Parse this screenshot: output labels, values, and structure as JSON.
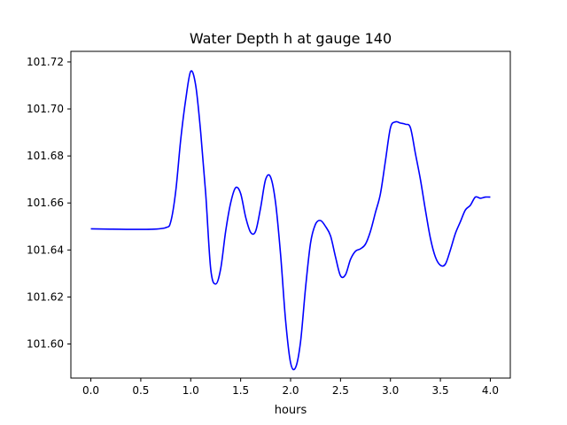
{
  "chart_data": {
    "type": "line",
    "title": "Water Depth h at gauge 140",
    "xlabel": "hours",
    "ylabel": "",
    "xlim": [
      -0.2,
      4.2
    ],
    "ylim": [
      101.5855,
      101.7245
    ],
    "grid": false,
    "x_ticks": [
      0.0,
      0.5,
      1.0,
      1.5,
      2.0,
      2.5,
      3.0,
      3.5,
      4.0
    ],
    "x_tick_labels": [
      "0.0",
      "0.5",
      "1.0",
      "1.5",
      "2.0",
      "2.5",
      "3.0",
      "3.5",
      "4.0"
    ],
    "y_ticks": [
      101.6,
      101.62,
      101.64,
      101.66,
      101.68,
      101.7,
      101.72
    ],
    "y_tick_labels": [
      "101.60",
      "101.62",
      "101.64",
      "101.66",
      "101.68",
      "101.70",
      "101.72"
    ],
    "series": [
      {
        "color": "#0000ff",
        "x": [
          0.0,
          0.3,
          0.6,
          0.75,
          0.8,
          0.85,
          0.9,
          0.95,
          1.0,
          1.05,
          1.1,
          1.15,
          1.2,
          1.25,
          1.3,
          1.35,
          1.4,
          1.45,
          1.5,
          1.55,
          1.6,
          1.65,
          1.7,
          1.75,
          1.8,
          1.85,
          1.9,
          1.95,
          2.0,
          2.05,
          2.1,
          2.15,
          2.2,
          2.25,
          2.3,
          2.35,
          2.4,
          2.45,
          2.5,
          2.55,
          2.6,
          2.65,
          2.7,
          2.75,
          2.8,
          2.85,
          2.9,
          2.95,
          3.0,
          3.05,
          3.1,
          3.15,
          3.2,
          3.25,
          3.3,
          3.35,
          3.4,
          3.45,
          3.5,
          3.55,
          3.6,
          3.65,
          3.7,
          3.75,
          3.8,
          3.85,
          3.9,
          3.95,
          4.0
        ],
        "y": [
          101.649,
          101.6488,
          101.6488,
          101.6495,
          101.652,
          101.665,
          101.687,
          101.704,
          101.716,
          101.71,
          101.69,
          101.664,
          101.632,
          101.6255,
          101.632,
          101.648,
          101.66,
          101.6665,
          101.664,
          101.654,
          101.6475,
          101.648,
          101.658,
          101.67,
          101.671,
          101.66,
          101.638,
          101.61,
          101.592,
          101.59,
          101.601,
          101.624,
          101.643,
          101.651,
          101.6525,
          101.65,
          101.646,
          101.637,
          101.629,
          101.6295,
          101.636,
          101.6395,
          101.6405,
          101.6425,
          101.648,
          101.656,
          101.664,
          101.678,
          101.692,
          101.6945,
          101.694,
          101.6935,
          101.692,
          101.681,
          101.67,
          101.657,
          101.645,
          101.637,
          101.6335,
          101.634,
          101.64,
          101.647,
          101.652,
          101.657,
          101.659,
          101.6625,
          101.662,
          101.6625,
          101.6625
        ]
      }
    ]
  }
}
